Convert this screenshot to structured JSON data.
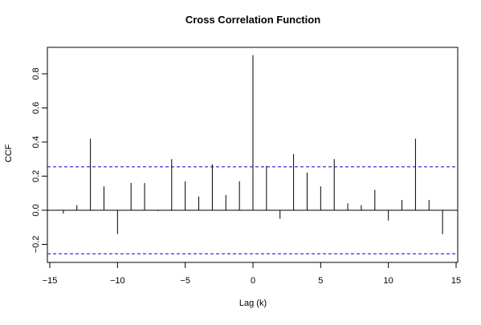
{
  "chart_data": {
    "type": "bar",
    "title": "Cross Correlation Function",
    "xlabel": "Lag (k)",
    "ylabel": "CCF",
    "xlim": [
      -15,
      15
    ],
    "ylim": [
      -0.3,
      0.95
    ],
    "xticks": [
      -15,
      -10,
      -5,
      0,
      5,
      10,
      15
    ],
    "xtick_labels": [
      "−15",
      "−10",
      "−5",
      "0",
      "5",
      "10",
      "15"
    ],
    "yticks": [
      -0.2,
      0.0,
      0.2,
      0.4,
      0.6,
      0.8
    ],
    "ytick_labels": [
      "−0.2",
      "0.0",
      "0.2",
      "0.4",
      "0.6",
      "0.8"
    ],
    "confidence_band": [
      0.255,
      -0.255
    ],
    "zero_line": true,
    "grid": false,
    "series": [
      {
        "lags": [
          -14,
          -13,
          -12,
          -11,
          -10,
          -9,
          -8,
          -7,
          -6,
          -5,
          -4,
          -3,
          -2,
          -1,
          0,
          1,
          2,
          3,
          4,
          5,
          6,
          7,
          8,
          9,
          10,
          11,
          12,
          13,
          14
        ],
        "values": [
          -0.02,
          0.03,
          0.42,
          0.14,
          -0.14,
          0.16,
          0.16,
          -0.005,
          0.3,
          0.17,
          0.08,
          0.27,
          0.09,
          0.17,
          0.91,
          0.26,
          -0.05,
          0.33,
          0.22,
          0.14,
          0.3,
          0.04,
          0.03,
          0.12,
          -0.06,
          0.06,
          0.42,
          0.06,
          -0.14
        ]
      }
    ],
    "colors": {
      "bars": "#000000",
      "axes": "#000000",
      "confidence_band": "#0000cc"
    }
  }
}
